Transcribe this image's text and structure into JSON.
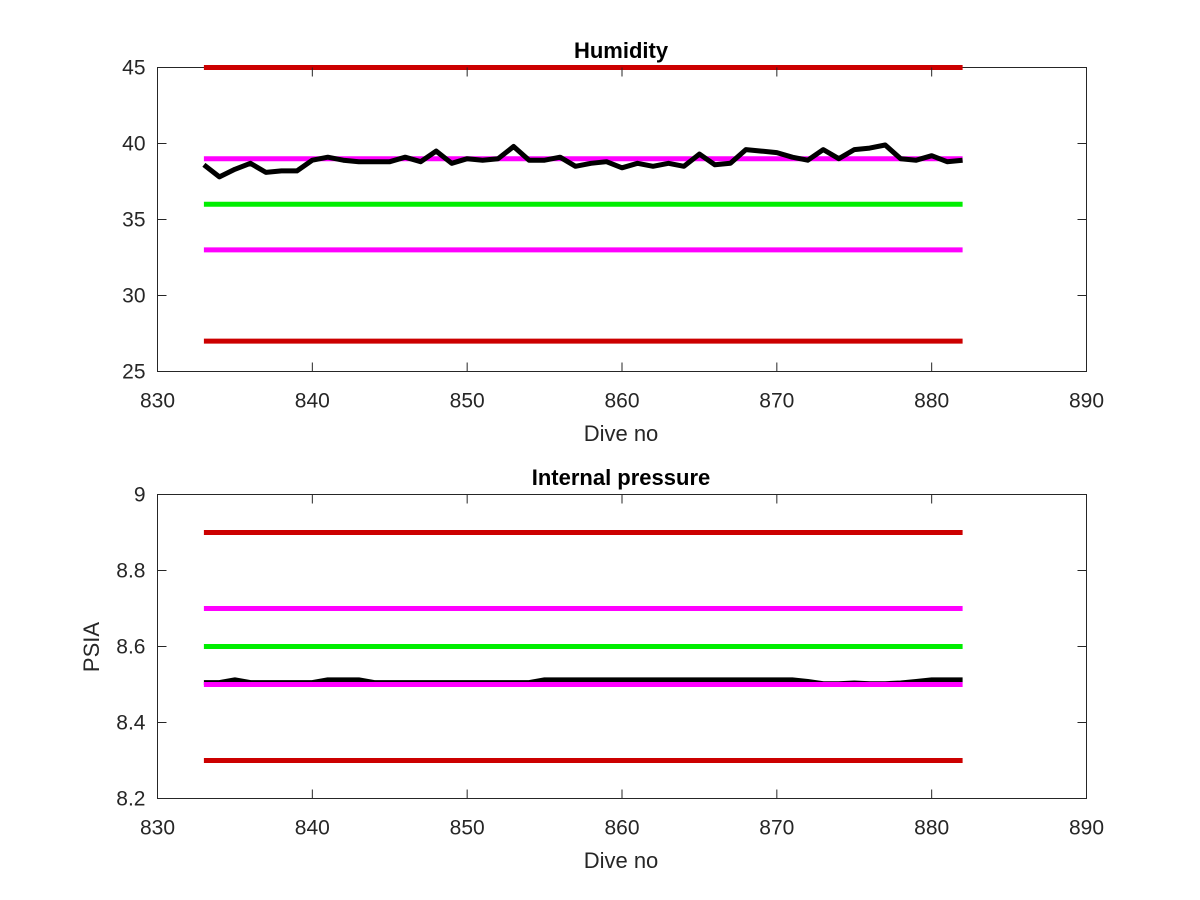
{
  "chart_data": [
    {
      "type": "line",
      "title": "Humidity",
      "xlabel": "Dive no",
      "ylabel": "",
      "xlim": [
        830,
        890
      ],
      "ylim": [
        25,
        45
      ],
      "xticks": [
        830,
        840,
        850,
        860,
        870,
        880,
        890
      ],
      "xtick_labels": [
        "830",
        "840",
        "850",
        "860",
        "870",
        "880",
        "890"
      ],
      "yticks": [
        25,
        30,
        35,
        40,
        45
      ],
      "ytick_labels": [
        "25",
        "30",
        "35",
        "40",
        "45"
      ],
      "grid": false,
      "series": [
        {
          "color": "#cc0000",
          "x": [
            833,
            882
          ],
          "y": [
            45,
            45
          ]
        },
        {
          "color": "#ff00ff",
          "x": [
            833,
            882
          ],
          "y": [
            39,
            39
          ]
        },
        {
          "color": "#00ee00",
          "x": [
            833,
            882
          ],
          "y": [
            36,
            36
          ]
        },
        {
          "color": "#ff00ff",
          "x": [
            833,
            882
          ],
          "y": [
            33,
            33
          ]
        },
        {
          "color": "#cc0000",
          "x": [
            833,
            882
          ],
          "y": [
            27,
            27
          ]
        },
        {
          "color": "#000000",
          "x": [
            833,
            834,
            835,
            836,
            837,
            838,
            839,
            840,
            841,
            842,
            843,
            844,
            845,
            846,
            847,
            848,
            849,
            850,
            851,
            852,
            853,
            854,
            855,
            856,
            857,
            858,
            859,
            860,
            861,
            862,
            863,
            864,
            865,
            866,
            867,
            868,
            869,
            870,
            871,
            872,
            873,
            874,
            875,
            876,
            877,
            878,
            879,
            880,
            881,
            882
          ],
          "y": [
            38.6,
            37.8,
            38.3,
            38.7,
            38.1,
            38.2,
            38.2,
            38.9,
            39.1,
            38.9,
            38.8,
            38.8,
            38.8,
            39.1,
            38.8,
            39.5,
            38.7,
            39.0,
            38.9,
            39.0,
            39.8,
            38.9,
            38.9,
            39.1,
            38.5,
            38.7,
            38.8,
            38.4,
            38.7,
            38.5,
            38.7,
            38.5,
            39.3,
            38.6,
            38.7,
            39.6,
            39.5,
            39.4,
            39.1,
            38.9,
            39.6,
            39.0,
            39.6,
            39.7,
            39.9,
            39.0,
            38.9,
            39.2,
            38.8,
            38.9
          ]
        }
      ]
    },
    {
      "type": "line",
      "title": "Internal pressure",
      "xlabel": "Dive no",
      "ylabel": "PSIA",
      "xlim": [
        830,
        890
      ],
      "ylim": [
        8.2,
        9.0
      ],
      "xticks": [
        830,
        840,
        850,
        860,
        870,
        880,
        890
      ],
      "xtick_labels": [
        "830",
        "840",
        "850",
        "860",
        "870",
        "880",
        "890"
      ],
      "yticks": [
        8.2,
        8.4,
        8.6,
        8.8,
        9.0
      ],
      "ytick_labels": [
        "8.2",
        "8.4",
        "8.6",
        "8.8",
        "9"
      ],
      "grid": false,
      "series": [
        {
          "color": "#cc0000",
          "x": [
            833,
            882
          ],
          "y": [
            8.9,
            8.9
          ]
        },
        {
          "color": "#ff00ff",
          "x": [
            833,
            882
          ],
          "y": [
            8.7,
            8.7
          ]
        },
        {
          "color": "#00ee00",
          "x": [
            833,
            882
          ],
          "y": [
            8.6,
            8.6
          ]
        },
        {
          "color": "#cc0000",
          "x": [
            833,
            882
          ],
          "y": [
            8.3,
            8.3
          ]
        },
        {
          "color": "#000000",
          "x": [
            833,
            834,
            835,
            836,
            837,
            838,
            839,
            840,
            841,
            842,
            843,
            844,
            845,
            846,
            847,
            848,
            849,
            850,
            851,
            852,
            853,
            854,
            855,
            856,
            857,
            858,
            859,
            860,
            861,
            862,
            863,
            864,
            865,
            866,
            867,
            868,
            869,
            870,
            871,
            872,
            873,
            874,
            875,
            876,
            877,
            878,
            879,
            880,
            881,
            882
          ],
          "y": [
            8.505,
            8.505,
            8.512,
            8.505,
            8.505,
            8.505,
            8.505,
            8.505,
            8.512,
            8.512,
            8.512,
            8.505,
            8.505,
            8.505,
            8.505,
            8.505,
            8.505,
            8.505,
            8.505,
            8.505,
            8.505,
            8.505,
            8.512,
            8.512,
            8.512,
            8.512,
            8.512,
            8.512,
            8.512,
            8.512,
            8.512,
            8.512,
            8.512,
            8.512,
            8.512,
            8.512,
            8.512,
            8.512,
            8.512,
            8.508,
            8.502,
            8.502,
            8.504,
            8.502,
            8.502,
            8.504,
            8.508,
            8.512,
            8.512,
            8.512
          ]
        },
        {
          "color": "#ff00ff",
          "x": [
            833,
            882
          ],
          "y": [
            8.5,
            8.5
          ]
        }
      ]
    }
  ]
}
